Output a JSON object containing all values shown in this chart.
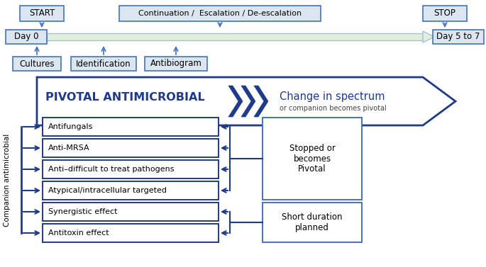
{
  "bg_color": "#ffffff",
  "blue_dark": "#1e3a8a",
  "blue_mid": "#4472c4",
  "blue_light": "#9dc3e6",
  "green_bar_fill": "#e2efda",
  "green_bar_edge": "#9dc3e6",
  "box_fill": "#dce6f1",
  "white": "#ffffff",
  "companion_items": [
    "Antifungals",
    "Anti-MRSA",
    "Anti–difficult to treat pathogens",
    "Atypical/intracellular targeted",
    "Synergistic effect",
    "Antitoxin effect"
  ],
  "stopped_box_text": "Stopped or\nbecomes\nPivotal",
  "short_duration_text": "Short duration\nplanned",
  "companion_label": "Companion antimicrobial",
  "pivotal_text": "PIVOTAL ANTIMICROBIAL",
  "spectrum_text": "Change in spectrum",
  "spectrum_sub": "or companion becomes pivotal",
  "start_text": "START",
  "stop_text": "STOP",
  "continuation_text": "Continuation /  Escalation / De-escalation",
  "day0_text": "Day 0",
  "day57_text": "Day 5 to 7",
  "cultures_text": "Cultures",
  "identification_text": "Identification",
  "antibiogram_text": "Antibiogram"
}
